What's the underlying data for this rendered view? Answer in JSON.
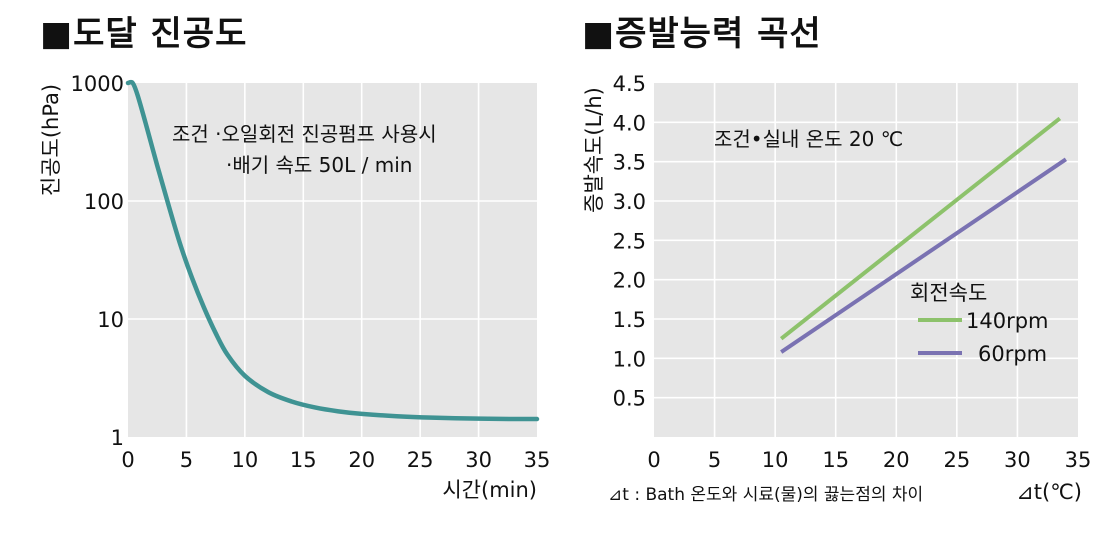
{
  "titles": {
    "left": "■도달 진공도",
    "right": "■증발능력 곡선"
  },
  "chart_data": [
    {
      "type": "line",
      "title": "■도달 진공도",
      "xlabel": "시간(min)",
      "ylabel": "진공도(hPa)",
      "xlim": [
        0,
        35
      ],
      "ylim": [
        1,
        1000
      ],
      "yscale": "log",
      "x_ticks": [
        "0",
        "5",
        "10",
        "15",
        "20",
        "25",
        "30",
        "35"
      ],
      "y_ticks": [
        {
          "value": 1,
          "label": "1"
        },
        {
          "value": 10,
          "label": "10"
        },
        {
          "value": 100,
          "label": "100"
        },
        {
          "value": 1000,
          "label": "1000"
        }
      ],
      "grid": true,
      "annotations": [
        "조건 ·오일회전 진공펌프 사용시",
        "·배기 속도 50L / min"
      ],
      "series": [
        {
          "color": "#3f9393",
          "x": [
            0,
            0.4,
            0.8,
            1.5,
            2.5,
            3.5,
            4.5,
            5.5,
            6.5,
            7.5,
            8.5,
            10,
            12,
            14,
            16,
            18,
            20,
            23,
            26,
            30,
            33,
            35
          ],
          "y": [
            1000,
            1000,
            800,
            460,
            200,
            90,
            42,
            22,
            12.5,
            7.6,
            5.0,
            3.3,
            2.4,
            2.0,
            1.78,
            1.65,
            1.57,
            1.5,
            1.46,
            1.43,
            1.42,
            1.42
          ]
        }
      ]
    },
    {
      "type": "line",
      "title": "■증발능력 곡선",
      "xlabel": "⊿t(℃)",
      "ylabel": "증발속도(L/h)",
      "xlim": [
        0,
        35
      ],
      "ylim": [
        0,
        4.5
      ],
      "x_ticks": [
        "0",
        "5",
        "10",
        "15",
        "20",
        "25",
        "30",
        "35"
      ],
      "y_ticks": [
        "0.5",
        "1.0",
        "1.5",
        "2.0",
        "2.5",
        "3.0",
        "3.5",
        "4.0",
        "4.5"
      ],
      "grid": true,
      "annotations": [
        "조건•실내 온도 20 ℃"
      ],
      "footnote": "⊿t : Bath 온도와 시료(물)의 끓는점의 차이",
      "legend_title": "회전속도",
      "legend_position": "center-right",
      "series": [
        {
          "name": "140rpm",
          "color": "#8dc26b",
          "x": [
            10.5,
            33.5
          ],
          "y": [
            1.25,
            4.05
          ]
        },
        {
          "name": "60rpm",
          "color": "#7a72b2",
          "x": [
            10.5,
            34.0
          ],
          "y": [
            1.08,
            3.53
          ]
        }
      ]
    }
  ]
}
